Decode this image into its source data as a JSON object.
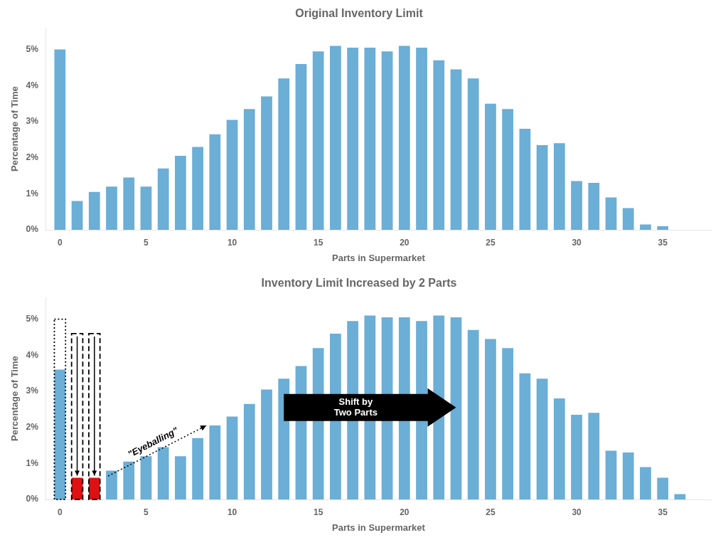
{
  "chart_data": [
    {
      "type": "bar",
      "title": "Original Inventory Limit",
      "x_label": "Parts in Supermarket",
      "y_label": "Percentage of Time",
      "x": [
        0,
        1,
        2,
        3,
        4,
        5,
        6,
        7,
        8,
        9,
        10,
        11,
        12,
        13,
        14,
        15,
        16,
        17,
        18,
        19,
        20,
        21,
        22,
        23,
        24,
        25,
        26,
        27,
        28,
        29,
        30,
        31,
        32,
        33,
        34,
        35,
        36
      ],
      "values": [
        5.0,
        0.8,
        1.05,
        1.2,
        1.45,
        1.2,
        1.7,
        2.05,
        2.3,
        2.65,
        3.05,
        3.35,
        3.7,
        4.2,
        4.6,
        4.95,
        5.1,
        5.05,
        5.05,
        4.95,
        5.1,
        5.05,
        4.7,
        4.45,
        4.2,
        3.5,
        3.35,
        2.8,
        2.35,
        2.4,
        1.35,
        1.3,
        0.9,
        0.6,
        0.15,
        0.1,
        0.0
      ],
      "color": "#6baed6",
      "xlim": [
        -0.8,
        37.8
      ],
      "xticks": [
        0,
        5,
        10,
        15,
        20,
        25,
        30,
        35
      ],
      "ylim": [
        0,
        5.6
      ],
      "yticks": [
        {
          "value": 0,
          "label": "0%"
        },
        {
          "value": 1,
          "label": "1%"
        },
        {
          "value": 2,
          "label": "2%"
        },
        {
          "value": 3,
          "label": "3%"
        },
        {
          "value": 4,
          "label": "4%"
        },
        {
          "value": 5,
          "label": "5%"
        }
      ],
      "grid": false
    },
    {
      "type": "bar",
      "title": "Inventory Limit Increased by 2 Parts",
      "x_label": "Parts in Supermarket",
      "y_label": "Percentage of Time",
      "x": [
        0,
        1,
        2,
        3,
        4,
        5,
        6,
        7,
        8,
        9,
        10,
        11,
        12,
        13,
        14,
        15,
        16,
        17,
        18,
        19,
        20,
        21,
        22,
        23,
        24,
        25,
        26,
        27,
        28,
        29,
        30,
        31,
        32,
        33,
        34,
        35,
        36
      ],
      "values": [
        3.6,
        0.6,
        0.6,
        0.8,
        1.05,
        1.2,
        1.45,
        1.2,
        1.7,
        2.05,
        2.3,
        2.65,
        3.05,
        3.35,
        3.7,
        4.2,
        4.6,
        4.95,
        5.1,
        5.05,
        5.05,
        4.95,
        5.1,
        5.05,
        4.7,
        4.45,
        4.2,
        3.5,
        3.35,
        2.8,
        2.35,
        2.4,
        1.35,
        1.3,
        0.9,
        0.6,
        0.15
      ],
      "colors": [
        "#6baed6",
        "#dd1111",
        "#dd1111",
        "#6baed6",
        "#6baed6",
        "#6baed6",
        "#6baed6",
        "#6baed6",
        "#6baed6",
        "#6baed6",
        "#6baed6",
        "#6baed6",
        "#6baed6",
        "#6baed6",
        "#6baed6",
        "#6baed6",
        "#6baed6",
        "#6baed6",
        "#6baed6",
        "#6baed6",
        "#6baed6",
        "#6baed6",
        "#6baed6",
        "#6baed6",
        "#6baed6",
        "#6baed6",
        "#6baed6",
        "#6baed6",
        "#6baed6",
        "#6baed6",
        "#6baed6",
        "#6baed6",
        "#6baed6",
        "#6baed6",
        "#6baed6",
        "#6baed6",
        "#6baed6"
      ],
      "outlines": [
        {
          "x": 0,
          "value": 5.0,
          "line_style": "dotted"
        },
        {
          "x": 1,
          "value": 4.6,
          "line_style": "dashed"
        },
        {
          "x": 2,
          "value": 4.6,
          "line_style": "dashed"
        }
      ],
      "annotations": [
        {
          "text": "\"Eyeballing\"",
          "kind": "line",
          "line_style": "dotted",
          "from": [
            2.8,
            0.65
          ],
          "to": [
            8.5,
            2.05
          ]
        },
        {
          "text": "Shift by\nTwo Parts",
          "kind": "block",
          "line_style": "solid",
          "from": [
            13.0,
            2.55
          ],
          "to": [
            23.0,
            2.55
          ]
        }
      ],
      "xlim": [
        -0.8,
        37.8
      ],
      "xticks": [
        0,
        5,
        10,
        15,
        20,
        25,
        30,
        35
      ],
      "ylim": [
        0,
        5.6
      ],
      "yticks": [
        {
          "value": 0,
          "label": "0%"
        },
        {
          "value": 1,
          "label": "1%"
        },
        {
          "value": 2,
          "label": "2%"
        },
        {
          "value": 3,
          "label": "3%"
        },
        {
          "value": 4,
          "label": "4%"
        },
        {
          "value": 5,
          "label": "5%"
        }
      ],
      "grid": false
    }
  ]
}
